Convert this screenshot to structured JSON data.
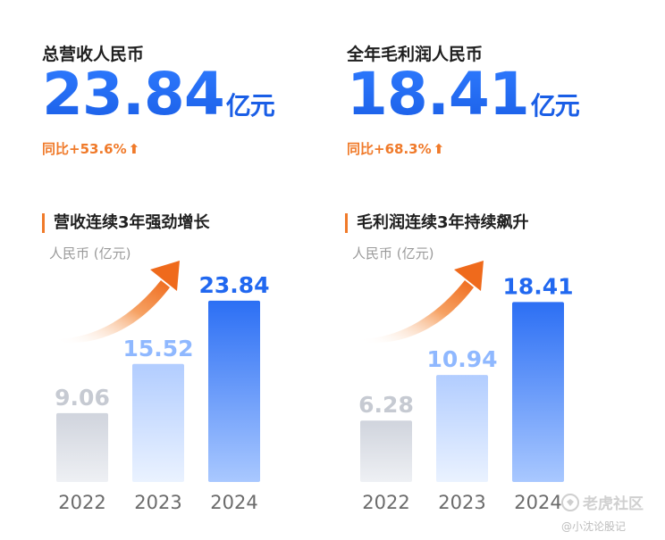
{
  "metrics": [
    {
      "label": "总营收人民币",
      "value": "23.84",
      "unit": "亿元",
      "growth": "同比+53.6%"
    },
    {
      "label": "全年毛利润人民币",
      "value": "18.41",
      "unit": "亿元",
      "growth": "同比+68.3%"
    }
  ],
  "chart_data": [
    {
      "type": "bar",
      "title": "营收连续3年强劲增长",
      "ylabel": "人民币 (亿元)",
      "categories": [
        "2022",
        "2023",
        "2024"
      ],
      "values": [
        9.06,
        15.52,
        23.84
      ],
      "value_labels": [
        "9.06",
        "15.52",
        "23.84"
      ],
      "ylim": [
        0,
        27
      ],
      "colors": {
        "2022": "#cfd3dc",
        "2023": "#b7d1ff",
        "2024": "#2f74f6"
      },
      "grid": false,
      "legend": "none"
    },
    {
      "type": "bar",
      "title": "毛利润连续3年持续飙升",
      "ylabel": "人民币 (亿元)",
      "categories": [
        "2022",
        "2023",
        "2024"
      ],
      "values": [
        6.28,
        10.94,
        18.41
      ],
      "value_labels": [
        "6.28",
        "10.94",
        "18.41"
      ],
      "ylim": [
        0,
        21
      ],
      "colors": {
        "2022": "#cfd3dc",
        "2023": "#b7d1ff",
        "2024": "#2f74f6"
      },
      "grid": false,
      "legend": "none"
    }
  ],
  "accent_color": "#f07a2a",
  "brand_color": "#1a5ee6",
  "watermark": {
    "logo": "老虎社区",
    "author": "@小沈论股记",
    "icon": "tiger-community-logo-icon"
  }
}
